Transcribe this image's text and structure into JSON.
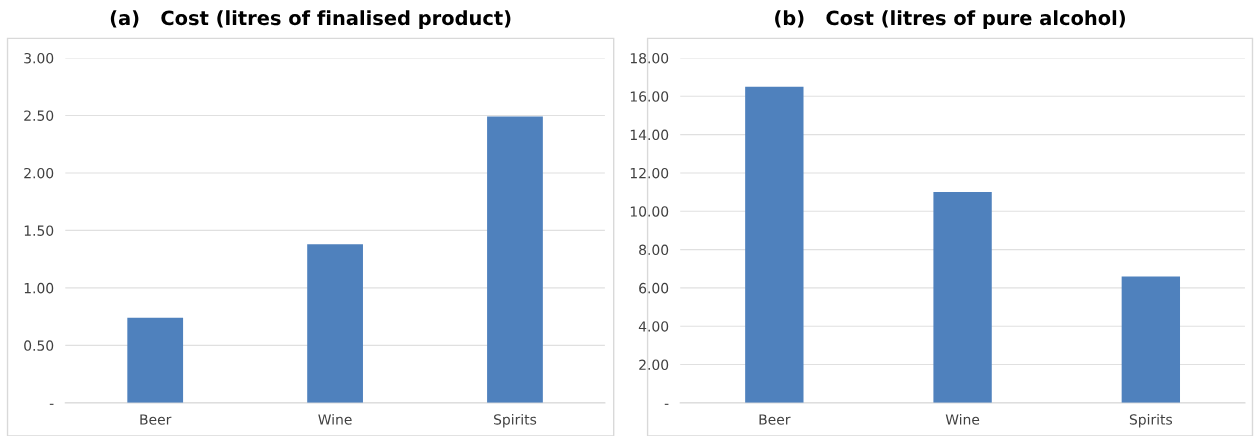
{
  "chart_data": [
    {
      "type": "bar",
      "title": "(a)   Cost (litres of finalised product)",
      "categories": [
        "Beer",
        "Wine",
        "Spirits"
      ],
      "values": [
        0.74,
        1.38,
        2.49
      ],
      "color": "#4f81bd",
      "ylim": [
        0,
        3
      ],
      "yticks": [
        {
          "value": 0,
          "label": "-"
        },
        {
          "value": 0.5,
          "label": "0.50"
        },
        {
          "value": 1,
          "label": "1.00"
        },
        {
          "value": 1.5,
          "label": "1.50"
        },
        {
          "value": 2,
          "label": "2.00"
        },
        {
          "value": 2.5,
          "label": "2.50"
        },
        {
          "value": 3,
          "label": "3.00"
        }
      ],
      "grid": "y"
    },
    {
      "type": "bar",
      "title": "(b)   Cost (litres of pure alcohol)",
      "categories": [
        "Beer",
        "Wine",
        "Spirits"
      ],
      "values": [
        16.5,
        11.0,
        6.6
      ],
      "color": "#4f81bd",
      "ylim": [
        0,
        18
      ],
      "yticks": [
        {
          "value": 0,
          "label": "-"
        },
        {
          "value": 2,
          "label": "2.00"
        },
        {
          "value": 4,
          "label": "4.00"
        },
        {
          "value": 6,
          "label": "6.00"
        },
        {
          "value": 8,
          "label": "8.00"
        },
        {
          "value": 10,
          "label": "10.00"
        },
        {
          "value": 12,
          "label": "12.00"
        },
        {
          "value": 14,
          "label": "14.00"
        },
        {
          "value": 16,
          "label": "16.00"
        },
        {
          "value": 18,
          "label": "18.00"
        }
      ],
      "grid": "y"
    }
  ]
}
